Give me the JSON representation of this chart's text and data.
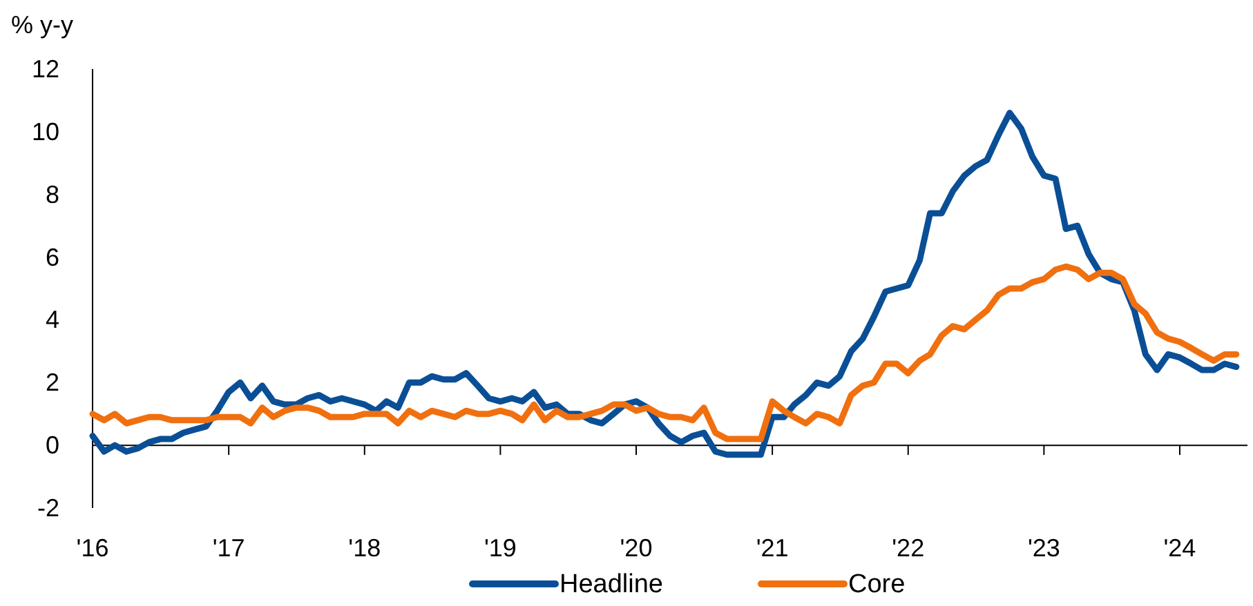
{
  "chart_data": {
    "type": "line",
    "ylabel": "% y-y",
    "x": [
      "2016-01",
      "2016-02",
      "2016-03",
      "2016-04",
      "2016-05",
      "2016-06",
      "2016-07",
      "2016-08",
      "2016-09",
      "2016-10",
      "2016-11",
      "2016-12",
      "2017-01",
      "2017-02",
      "2017-03",
      "2017-04",
      "2017-05",
      "2017-06",
      "2017-07",
      "2017-08",
      "2017-09",
      "2017-10",
      "2017-11",
      "2017-12",
      "2018-01",
      "2018-02",
      "2018-03",
      "2018-04",
      "2018-05",
      "2018-06",
      "2018-07",
      "2018-08",
      "2018-09",
      "2018-10",
      "2018-11",
      "2018-12",
      "2019-01",
      "2019-02",
      "2019-03",
      "2019-04",
      "2019-05",
      "2019-06",
      "2019-07",
      "2019-08",
      "2019-09",
      "2019-10",
      "2019-11",
      "2019-12",
      "2020-01",
      "2020-02",
      "2020-03",
      "2020-04",
      "2020-05",
      "2020-06",
      "2020-07",
      "2020-08",
      "2020-09",
      "2020-10",
      "2020-11",
      "2020-12",
      "2021-01",
      "2021-02",
      "2021-03",
      "2021-04",
      "2021-05",
      "2021-06",
      "2021-07",
      "2021-08",
      "2021-09",
      "2021-10",
      "2021-11",
      "2021-12",
      "2022-01",
      "2022-02",
      "2022-03",
      "2022-04",
      "2022-05",
      "2022-06",
      "2022-07",
      "2022-08",
      "2022-09",
      "2022-10",
      "2022-11",
      "2022-12",
      "2023-01",
      "2023-02",
      "2023-03",
      "2023-04",
      "2023-05",
      "2023-06",
      "2023-07",
      "2023-08",
      "2023-09",
      "2023-10",
      "2023-11",
      "2023-12",
      "2024-01",
      "2024-02",
      "2024-03",
      "2024-04",
      "2024-05",
      "2024-06"
    ],
    "series": [
      {
        "name": "Headline",
        "color": "#0a4f96",
        "values": [
          0.3,
          -0.2,
          0.0,
          -0.2,
          -0.1,
          0.1,
          0.2,
          0.2,
          0.4,
          0.5,
          0.6,
          1.1,
          1.7,
          2.0,
          1.5,
          1.9,
          1.4,
          1.3,
          1.3,
          1.5,
          1.6,
          1.4,
          1.5,
          1.4,
          1.3,
          1.1,
          1.4,
          1.2,
          2.0,
          2.0,
          2.2,
          2.1,
          2.1,
          2.3,
          1.9,
          1.5,
          1.4,
          1.5,
          1.4,
          1.7,
          1.2,
          1.3,
          1.0,
          1.0,
          0.8,
          0.7,
          1.0,
          1.3,
          1.4,
          1.2,
          0.7,
          0.3,
          0.1,
          0.3,
          0.4,
          -0.2,
          -0.3,
          -0.3,
          -0.3,
          -0.3,
          0.9,
          0.9,
          1.3,
          1.6,
          2.0,
          1.9,
          2.2,
          3.0,
          3.4,
          4.1,
          4.9,
          5.0,
          5.1,
          5.9,
          7.4,
          7.4,
          8.1,
          8.6,
          8.9,
          9.1,
          9.9,
          10.6,
          10.1,
          9.2,
          8.6,
          8.5,
          6.9,
          7.0,
          6.1,
          5.5,
          5.3,
          5.2,
          4.3,
          2.9,
          2.4,
          2.9,
          2.8,
          2.6,
          2.4,
          2.4,
          2.6,
          2.5
        ]
      },
      {
        "name": "Core",
        "color": "#f07010",
        "values": [
          1.0,
          0.8,
          1.0,
          0.7,
          0.8,
          0.9,
          0.9,
          0.8,
          0.8,
          0.8,
          0.8,
          0.9,
          0.9,
          0.9,
          0.7,
          1.2,
          0.9,
          1.1,
          1.2,
          1.2,
          1.1,
          0.9,
          0.9,
          0.9,
          1.0,
          1.0,
          1.0,
          0.7,
          1.1,
          0.9,
          1.1,
          1.0,
          0.9,
          1.1,
          1.0,
          1.0,
          1.1,
          1.0,
          0.8,
          1.3,
          0.8,
          1.1,
          0.9,
          0.9,
          1.0,
          1.1,
          1.3,
          1.3,
          1.1,
          1.2,
          1.0,
          0.9,
          0.9,
          0.8,
          1.2,
          0.4,
          0.2,
          0.2,
          0.2,
          0.2,
          1.4,
          1.1,
          0.9,
          0.7,
          1.0,
          0.9,
          0.7,
          1.6,
          1.9,
          2.0,
          2.6,
          2.6,
          2.3,
          2.7,
          2.9,
          3.5,
          3.8,
          3.7,
          4.0,
          4.3,
          4.8,
          5.0,
          5.0,
          5.2,
          5.3,
          5.6,
          5.7,
          5.6,
          5.3,
          5.5,
          5.5,
          5.3,
          4.5,
          4.2,
          3.6,
          3.4,
          3.3,
          3.1,
          2.9,
          2.7,
          2.9,
          2.9
        ]
      }
    ],
    "xlim": [
      "2016-01",
      "2024-07"
    ],
    "xticks": [
      {
        "value": "2016-01",
        "label": "'16"
      },
      {
        "value": "2017-01",
        "label": "'17"
      },
      {
        "value": "2018-01",
        "label": "'18"
      },
      {
        "value": "2019-01",
        "label": "'19"
      },
      {
        "value": "2020-01",
        "label": "'20"
      },
      {
        "value": "2021-01",
        "label": "'21"
      },
      {
        "value": "2022-01",
        "label": "'22"
      },
      {
        "value": "2023-01",
        "label": "'23"
      },
      {
        "value": "2024-01",
        "label": "'24"
      }
    ],
    "ylim": [
      -2,
      12
    ],
    "yticks": [
      -2,
      0,
      2,
      4,
      6,
      8,
      10,
      12
    ],
    "legend": "bottom",
    "line_style": "solid",
    "marker": "none"
  }
}
